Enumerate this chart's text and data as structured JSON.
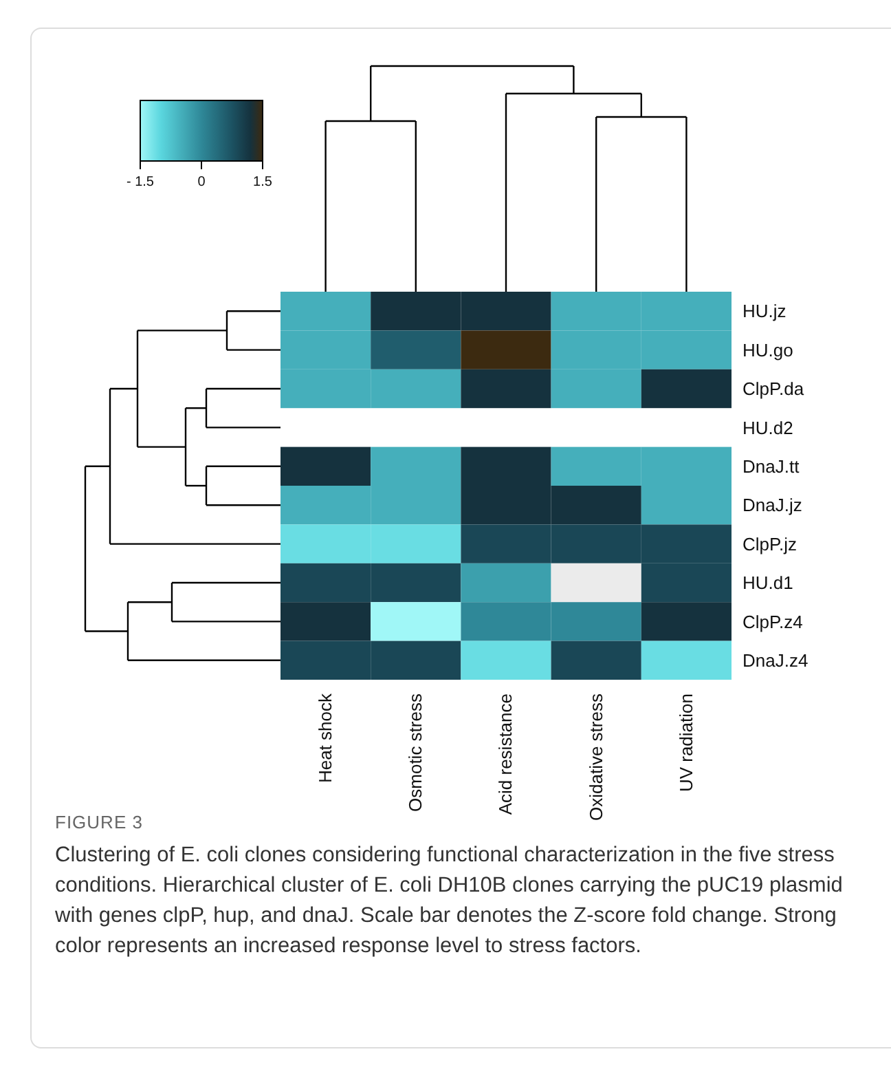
{
  "chart_data": {
    "type": "heatmap",
    "categories": [
      "Heat shock",
      "Osmotic stress",
      "Acid resistance",
      "Oxidative stress",
      "UV radiation"
    ],
    "y_categories": [
      "HU.jz",
      "HU.go",
      "ClpP.da",
      "HU.d2",
      "DnaJ.tt",
      "DnaJ.jz",
      "ClpP.jz",
      "HU.d1",
      "ClpP.z4",
      "DnaJ.z4"
    ],
    "cells": [
      [
        -0.5,
        1.2,
        1.2,
        -0.5,
        -0.5
      ],
      [
        -0.5,
        0.6,
        1.5,
        -0.5,
        -0.5
      ],
      [
        -0.5,
        -0.5,
        1.2,
        -0.5,
        1.2
      ],
      [
        null,
        null,
        null,
        null,
        null
      ],
      [
        1.2,
        -0.5,
        1.2,
        -0.5,
        -0.5
      ],
      [
        -0.5,
        -0.5,
        1.2,
        1.2,
        -0.5
      ],
      [
        -1.1,
        -1.1,
        0.9,
        0.9,
        0.9
      ],
      [
        0.9,
        0.9,
        -0.3,
        null,
        0.9
      ],
      [
        1.2,
        -1.5,
        0,
        0,
        1.2
      ],
      [
        0.9,
        0.9,
        -1.1,
        0.9,
        -1.1
      ]
    ],
    "clim": [
      -1.5,
      1.5
    ],
    "cticks": [
      {
        "value": -1.5,
        "label": "- 1.5"
      },
      0,
      1.5
    ],
    "annotations": [
      "FIGURE 3",
      "Clustering of E. coli clones considering functional characterization in the five stress conditions. Hierarchical cluster of E. coli DH10B clones carrying the pUC19 plasmid with genes clpP, hup, and dnaJ. Scale bar denotes the Z-score fold change. Strong color represents an increased response level to stress factors."
    ]
  }
}
